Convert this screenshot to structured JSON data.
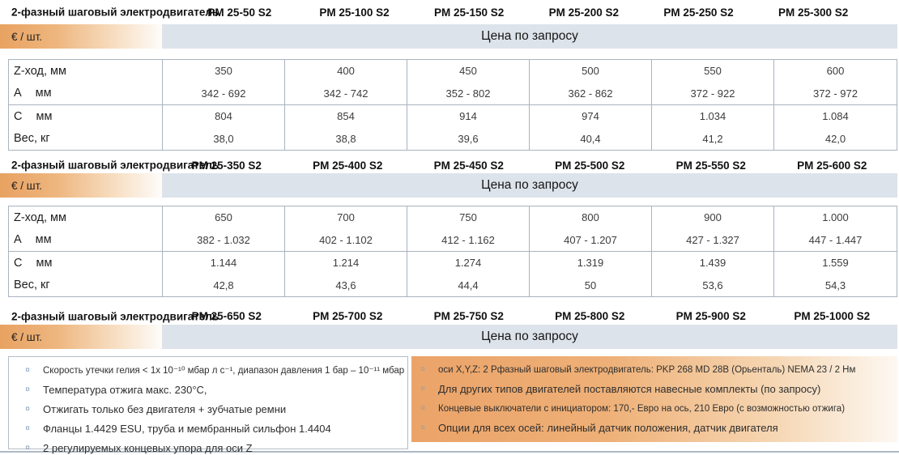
{
  "sections": [
    {
      "header_label": "2-фазный шаговый электродвигатель",
      "models": [
        "PM 25-50 S2",
        "PM 25-100 S2",
        "PM 25-150 S2",
        "PM 25-200 S2",
        "PM 25-250 S2",
        "PM 25-300 S2"
      ],
      "unit_label": "€ / шт.",
      "price_label": "Цена по запросу",
      "table_rows": [
        {
          "label": "Z-ход, мм",
          "unit": "",
          "values": [
            "350",
            "400",
            "450",
            "500",
            "550",
            "600"
          ]
        },
        {
          "label": "A",
          "unit": "мм",
          "values": [
            "342 - 692",
            "342 - 742",
            "352 - 802",
            "362 - 862",
            "372 - 922",
            "372 - 972"
          ]
        },
        {
          "label": "C",
          "unit": "мм",
          "values": [
            "804",
            "854",
            "914",
            "974",
            "1.034",
            "1.084"
          ]
        },
        {
          "label": "Вес, кг",
          "unit": "",
          "values": [
            "38,0",
            "38,8",
            "39,6",
            "40,4",
            "41,2",
            "42,0"
          ]
        }
      ]
    },
    {
      "header_label": "2-фазный шаговый электродвигатель",
      "models": [
        "PM 25-350 S2",
        "PM 25-400 S2",
        "PM 25-450 S2",
        "PM 25-500 S2",
        "PM 25-550 S2",
        "PM 25-600 S2"
      ],
      "unit_label": "€ / шт.",
      "price_label": "Цена по запросу",
      "table_rows": [
        {
          "label": "Z-ход, мм",
          "unit": "",
          "values": [
            "650",
            "700",
            "750",
            "800",
            "900",
            "1.000"
          ]
        },
        {
          "label": "A",
          "unit": "мм",
          "values": [
            "382 - 1.032",
            "402 - 1.102",
            "412 - 1.162",
            "407 - 1.207",
            "427 - 1.327",
            "447 - 1.447"
          ]
        },
        {
          "label": "C",
          "unit": "мм",
          "values": [
            "1.144",
            "1.214",
            "1.274",
            "1.319",
            "1.439",
            "1.559"
          ]
        },
        {
          "label": "Вес, кг",
          "unit": "",
          "values": [
            "42,8",
            "43,6",
            "44,4",
            "50",
            "53,6",
            "54,3"
          ]
        }
      ]
    },
    {
      "header_label": "2-фазный шаговый электродвигатель",
      "models": [
        "PM 25-650 S2",
        "PM 25-700 S2",
        "PM 25-750 S2",
        "PM 25-800 S2",
        "PM 25-900 S2",
        "PM 25-1000 S2"
      ],
      "unit_label": "€ / шт.",
      "price_label": "Цена по запросу",
      "table_rows": []
    }
  ],
  "notes": {
    "bullet_char": "¤",
    "left": [
      {
        "text": "Скорость утечки гелия  < 1x 10⁻¹⁰ мбар л с⁻¹, диапазон давления 1 бар – 10⁻¹¹ мбар",
        "small": true
      },
      {
        "text": "Температура отжига макс. 230°C,",
        "small": false
      },
      {
        "text": "Отжигать только без двигателя + зубчатые ремни",
        "small": false
      },
      {
        "text": "Фланцы 1.4429 ESU, труба и мембранный сильфон  1.4404",
        "small": false
      },
      {
        "text": "2 регулируемых концевых упора для оси Z",
        "small": false
      }
    ],
    "right": [
      {
        "text": "оси X,Y,Z: 2 Рфазный шаговый электродвигатель: PKP 268 MD 28B (Орьенталь) NEMA 23 / 2 Нм",
        "small": true
      },
      {
        "text": "Для других типов двигателей поставляются навесные комплекты (по запросу)",
        "small": false
      },
      {
        "text": "Концевые выключатели с инициатором: 170,- Евро на ось, 210 Евро (с возможностью отжига)",
        "small": true
      },
      {
        "text": "Опции для всех осей: линейный датчик положения, датчик двигателя",
        "small": false
      }
    ]
  },
  "colors": {
    "band_orange": "#e8a261",
    "band_blue": "#dde3ea",
    "table_border": "#a9b3bf",
    "notes_orange": "#eba368",
    "bottom_rule": "#adb8c3"
  }
}
